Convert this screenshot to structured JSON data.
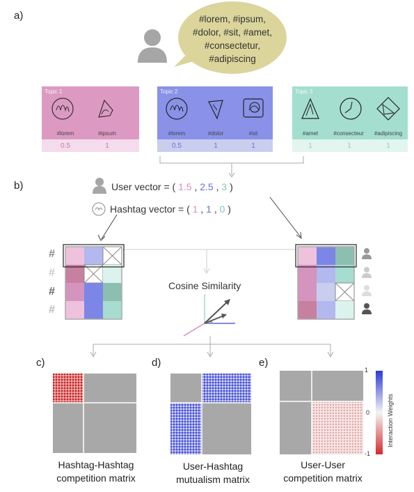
{
  "panels": {
    "a": "a)",
    "b": "b)",
    "c": "c)",
    "d": "d)",
    "e": "e)"
  },
  "bubble": {
    "lines": [
      "#lorem, #ipsum,",
      "#dolor, #sit, #amet,",
      "#consectetur,",
      "#adipiscing"
    ]
  },
  "topics": [
    {
      "title": "Topic 1",
      "color": "#d88fbd",
      "light": "#f4dcec",
      "tags": [
        "#lorem",
        "#ipsum"
      ],
      "weights": [
        "0.5",
        "1"
      ]
    },
    {
      "title": "Topic 2",
      "color": "#7c86e6",
      "light": "#c9ceef",
      "tags": [
        "#lorem",
        "#dolor",
        "#sit"
      ],
      "weights": [
        "0.5",
        "1",
        "1"
      ]
    },
    {
      "title": "Topic 3",
      "color": "#9fdccc",
      "light": "#e2f5ef",
      "tags": [
        "#amet",
        "#consecteur",
        "#adipiscing"
      ],
      "weights": [
        "1",
        "1",
        "1"
      ]
    }
  ],
  "user_vector": {
    "label": "User vector = (",
    "values": [
      "1.5",
      "2.5",
      "3"
    ],
    "close": ")"
  },
  "hashtag_vector": {
    "label": "Hashtag vector = (",
    "values": [
      "1",
      "1",
      "0"
    ],
    "close": ")"
  },
  "cosine": "Cosine Similarity",
  "hash_symbol": "#",
  "colorbar": {
    "title": "Interaction Weights",
    "max": "1",
    "mid": "0",
    "min": "-1",
    "pos_color": "#2b3bd6",
    "neg_color": "#d42a2a"
  },
  "matrices": [
    {
      "caption_lines": [
        "Hashtag-Hashtag",
        "competition matrix"
      ]
    },
    {
      "caption_lines": [
        "User-Hashtag",
        "mutualism matrix"
      ]
    },
    {
      "caption_lines": [
        "User-User",
        "competition matrix"
      ]
    }
  ],
  "colors": {
    "pink": "#d88fbd",
    "blue": "#7c86e6",
    "teal": "#7fcab6",
    "gray_matrix": "#a8a8a8"
  }
}
